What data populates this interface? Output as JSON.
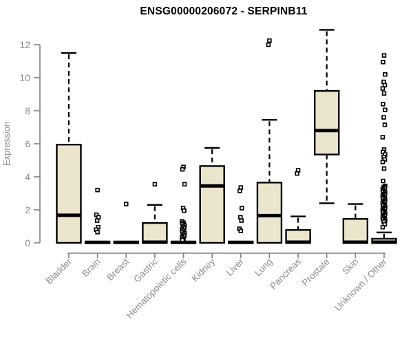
{
  "window": {
    "background": "#ffffff"
  },
  "chart_data": {
    "type": "boxplot",
    "title": "ENSG00000206072 - SERPINB11",
    "ylabel": "Expression",
    "xlabel": "",
    "ylim": [
      0,
      12
    ],
    "yticks": [
      0,
      2,
      4,
      6,
      8,
      10,
      12
    ],
    "grid": false,
    "legend": "none",
    "colors": {
      "box_fill": "#ece5cd",
      "box_border": "#000000",
      "median": "#000000",
      "whisker": "#000000",
      "outlier_fill": "#ffffff",
      "axis": "#808080",
      "tick_text": "#8c8c8c",
      "title_text": "#000000"
    },
    "categories": [
      "Bladder",
      "Brain",
      "Breast",
      "Gastric",
      "Hematopoietic cells",
      "Kidney",
      "Liver",
      "Lung",
      "Pancreas",
      "Prostate",
      "Skin",
      "Unknown / Other"
    ],
    "boxes": [
      {
        "name": "Bladder",
        "q1": 0,
        "median": 1.67,
        "q3": 5.95,
        "whisker_low": 0,
        "whisker_high": 11.5,
        "outliers": []
      },
      {
        "name": "Brain",
        "q1": 0,
        "median": 0.03,
        "q3": 0.06,
        "whisker_low": 0,
        "whisker_high": 0.06,
        "outliers": [
          3.2,
          1.7,
          1.55,
          1.35,
          0.95,
          0.8,
          0.65
        ]
      },
      {
        "name": "Breast",
        "q1": 0,
        "median": 0.03,
        "q3": 0.06,
        "whisker_low": 0,
        "whisker_high": 0.06,
        "outliers": [
          2.35
        ]
      },
      {
        "name": "Gastric",
        "q1": 0,
        "median": 0.04,
        "q3": 1.2,
        "whisker_low": 0,
        "whisker_high": 2.3,
        "outliers": [
          3.55
        ]
      },
      {
        "name": "Hematopoietic cells",
        "q1": 0,
        "median": 0.03,
        "q3": 0.06,
        "whisker_low": 0,
        "whisker_high": 0.06,
        "outliers": [
          4.6,
          4.45,
          3.55,
          2.1,
          1.95,
          1.3,
          1.22,
          1.14,
          1.06,
          0.98,
          0.9,
          0.82,
          0.74,
          0.66,
          0.58,
          0.5,
          0.42,
          0.34,
          0.26,
          0.18
        ]
      },
      {
        "name": "Kidney",
        "q1": 0,
        "median": 3.45,
        "q3": 4.65,
        "whisker_low": 0,
        "whisker_high": 5.75,
        "outliers": []
      },
      {
        "name": "Liver",
        "q1": 0,
        "median": 0.03,
        "q3": 0.06,
        "whisker_low": 0,
        "whisker_high": 0.06,
        "outliers": [
          3.35,
          3.15,
          2.1,
          1.55,
          1.35,
          0.85,
          0.72
        ]
      },
      {
        "name": "Lung",
        "q1": 0,
        "median": 1.65,
        "q3": 3.65,
        "whisker_low": 0,
        "whisker_high": 7.45,
        "outliers": [
          12.25,
          12.0
        ]
      },
      {
        "name": "Pancreas",
        "q1": 0,
        "median": 0.04,
        "q3": 0.78,
        "whisker_low": 0,
        "whisker_high": 1.6,
        "outliers": [
          4.4,
          4.2
        ]
      },
      {
        "name": "Prostate",
        "q1": 5.35,
        "median": 6.8,
        "q3": 9.2,
        "whisker_low": 2.4,
        "whisker_high": 12.9,
        "outliers": []
      },
      {
        "name": "Skin",
        "q1": 0,
        "median": 0.04,
        "q3": 1.45,
        "whisker_low": 0,
        "whisker_high": 2.35,
        "outliers": []
      },
      {
        "name": "Unknown / Other",
        "q1": 0,
        "median": 0.04,
        "q3": 0.25,
        "whisker_low": 0,
        "whisker_high": 0.63,
        "outliers": [
          11.35,
          10.95,
          10.2,
          9.75,
          9.55,
          9.35,
          9.05,
          8.4,
          8.05,
          7.6,
          7.15,
          6.4,
          5.65,
          5.5,
          5.35,
          5.2,
          5.05,
          4.9,
          4.5,
          3.75,
          3.45,
          3.38,
          3.31,
          3.24,
          3.17,
          3.1,
          3.03,
          2.96,
          2.89,
          2.82,
          2.75,
          2.68,
          2.61,
          2.54,
          2.47,
          2.4,
          2.33,
          2.26,
          2.19,
          2.12,
          2.05,
          1.98,
          1.91,
          1.84,
          1.77,
          1.7,
          1.63,
          1.56,
          1.49,
          1.42,
          1.35,
          1.28,
          1.12,
          0.95
        ]
      }
    ]
  }
}
